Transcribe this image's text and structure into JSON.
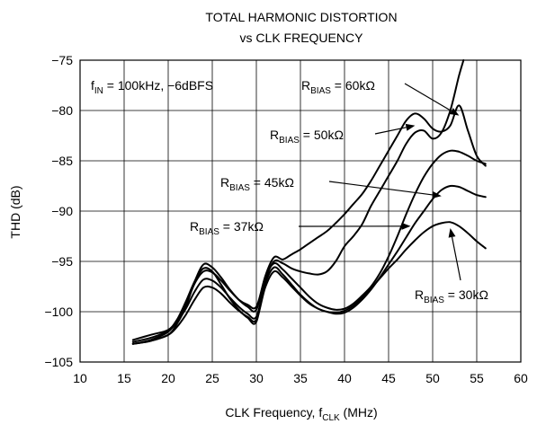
{
  "chart_data": {
    "type": "line",
    "title": "TOTAL HARMONIC DISTORTION",
    "subtitle": "vs CLK FREQUENCY",
    "xlabel": {
      "main": "CLK Frequency, f",
      "sub": "CLK",
      "unit": " (MHz)"
    },
    "ylabel": "THD (dB)",
    "xlim": [
      10,
      60
    ],
    "ylim": [
      -105,
      -75
    ],
    "xticks": [
      "10",
      "15",
      "20",
      "25",
      "30",
      "35",
      "40",
      "45",
      "50",
      "55",
      "60"
    ],
    "yticks": [
      "−75",
      "−80",
      "−85",
      "−90",
      "−95",
      "−100",
      "−105"
    ],
    "grid": true,
    "condition": {
      "main": "f",
      "sub": "IN",
      "rest": " = 100kHz, −6dBFS"
    },
    "series": [
      {
        "name": "R_BIAS = 60kΩ",
        "label": {
          "main": "R",
          "sub": "BIAS",
          "rest": " = 60kΩ"
        },
        "x": [
          16,
          18,
          20,
          21,
          22,
          23,
          24,
          25,
          26,
          27,
          28,
          29,
          30,
          31,
          32,
          33,
          34,
          35,
          36,
          37,
          38,
          39,
          40,
          41,
          42,
          43,
          44,
          45,
          46,
          47,
          48,
          49,
          50,
          51,
          52,
          53,
          53.5
        ],
        "y": [
          -103.2,
          -102.8,
          -102.0,
          -100.8,
          -99.0,
          -97.0,
          -95.7,
          -96.0,
          -97.3,
          -98.7,
          -99.8,
          -100.6,
          -101.0,
          -97.0,
          -95.0,
          -95.2,
          -95.7,
          -96.0,
          -96.2,
          -96.3,
          -96.0,
          -95.0,
          -93.5,
          -92.5,
          -91.3,
          -89.5,
          -88.0,
          -86.5,
          -85.0,
          -83.3,
          -82.2,
          -82.0,
          -82.8,
          -82.2,
          -80.0,
          -76.5,
          -75.0
        ],
        "arrow_target": [
          53,
          -80.5
        ]
      },
      {
        "name": "R_BIAS = 50kΩ",
        "label": {
          "main": "R",
          "sub": "BIAS",
          "rest": " = 50kΩ"
        },
        "x": [
          16,
          18,
          20,
          21,
          22,
          23,
          24,
          25,
          26,
          27,
          28,
          29,
          30,
          31,
          32,
          33,
          34,
          35,
          36,
          37,
          38,
          39,
          40,
          41,
          42,
          43,
          44,
          45,
          46,
          47,
          48,
          49,
          50,
          51,
          52,
          53,
          54,
          55,
          56
        ],
        "y": [
          -103.2,
          -102.9,
          -102.3,
          -101.2,
          -99.5,
          -97.0,
          -95.3,
          -95.6,
          -96.6,
          -97.8,
          -98.8,
          -99.5,
          -99.8,
          -96.5,
          -94.6,
          -94.8,
          -94.3,
          -93.8,
          -93.2,
          -92.6,
          -92.0,
          -91.2,
          -90.3,
          -89.3,
          -88.3,
          -87.0,
          -85.5,
          -84.0,
          -82.5,
          -81.0,
          -80.3,
          -80.8,
          -81.8,
          -82.1,
          -81.5,
          -79.5,
          -82.0,
          -84.5,
          -85.5
        ],
        "arrow_target": [
          48,
          -81.5
        ]
      },
      {
        "name": "R_BIAS = 45kΩ",
        "label": {
          "main": "R",
          "sub": "BIAS",
          "rest": " = 45kΩ"
        },
        "x": [
          16,
          18,
          20,
          21,
          22,
          23,
          24,
          25,
          26,
          27,
          28,
          29,
          30,
          31,
          32,
          33,
          34,
          35,
          36,
          37,
          38,
          39,
          40,
          41,
          42,
          43,
          44,
          45,
          46,
          47,
          48,
          49,
          50,
          51,
          52,
          53,
          54,
          55,
          56
        ],
        "y": [
          -102.8,
          -102.3,
          -101.8,
          -100.8,
          -99.3,
          -97.2,
          -96.0,
          -96.1,
          -96.9,
          -97.9,
          -98.8,
          -99.3,
          -99.5,
          -96.6,
          -95.2,
          -95.8,
          -96.7,
          -97.6,
          -98.5,
          -99.2,
          -99.6,
          -99.8,
          -99.7,
          -99.2,
          -98.4,
          -97.5,
          -96.2,
          -94.5,
          -92.5,
          -90.3,
          -88.3,
          -86.6,
          -85.3,
          -84.4,
          -84.0,
          -84.1,
          -84.5,
          -85.0,
          -85.3
        ],
        "arrow_target": [
          51,
          -88.5
        ]
      },
      {
        "name": "R_BIAS = 37kΩ",
        "label": {
          "main": "R",
          "sub": "BIAS",
          "rest": " = 37kΩ"
        },
        "x": [
          16,
          18,
          20,
          21,
          22,
          23,
          24,
          25,
          26,
          27,
          28,
          29,
          30,
          31,
          32,
          33,
          34,
          35,
          36,
          37,
          38,
          39,
          40,
          41,
          42,
          43,
          44,
          45,
          46,
          47,
          48,
          49,
          50,
          51,
          52,
          53,
          54,
          55,
          56
        ],
        "y": [
          -103.0,
          -102.6,
          -101.9,
          -101.0,
          -99.7,
          -98.0,
          -96.8,
          -96.9,
          -97.6,
          -98.6,
          -99.5,
          -100.2,
          -100.5,
          -97.2,
          -95.6,
          -96.3,
          -97.3,
          -98.3,
          -99.1,
          -99.7,
          -100.0,
          -100.2,
          -100.1,
          -99.6,
          -98.8,
          -97.8,
          -96.6,
          -95.3,
          -94.0,
          -92.6,
          -91.2,
          -90.0,
          -88.8,
          -87.9,
          -87.5,
          -87.6,
          -88.0,
          -88.4,
          -88.6
        ],
        "arrow_target": [
          47.5,
          -91.5
        ]
      },
      {
        "name": "R_BIAS = 30kΩ",
        "label": {
          "main": "R",
          "sub": "BIAS",
          "rest": " = 30kΩ"
        },
        "x": [
          16,
          18,
          20,
          21,
          22,
          23,
          24,
          25,
          26,
          27,
          28,
          29,
          30,
          31,
          32,
          33,
          34,
          35,
          36,
          37,
          38,
          39,
          40,
          41,
          42,
          43,
          44,
          45,
          46,
          47,
          48,
          49,
          50,
          51,
          52,
          53,
          54,
          55,
          56
        ],
        "y": [
          -103.2,
          -102.9,
          -102.3,
          -101.5,
          -100.3,
          -98.8,
          -97.6,
          -97.6,
          -98.2,
          -99.1,
          -99.9,
          -100.5,
          -100.8,
          -97.6,
          -96.0,
          -96.6,
          -97.5,
          -98.4,
          -99.2,
          -99.7,
          -100.0,
          -100.1,
          -99.9,
          -99.4,
          -98.6,
          -97.7,
          -96.7,
          -95.7,
          -94.8,
          -93.8,
          -92.9,
          -92.1,
          -91.5,
          -91.2,
          -91.1,
          -91.5,
          -92.2,
          -93.0,
          -93.7
        ],
        "arrow_target": [
          52,
          -91.7
        ]
      }
    ]
  }
}
